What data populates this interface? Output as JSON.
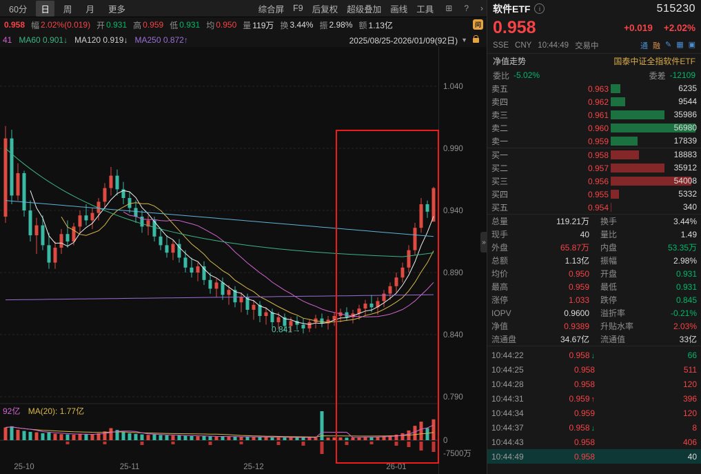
{
  "colors": {
    "up": "#dd4b42",
    "down": "#3ab9a5",
    "red_text": "#f54346",
    "green_text": "#00b86b",
    "accent_orange": "#e6a23c",
    "panel_bg": "#181818",
    "chart_bg": "#0f0f0f"
  },
  "toolbar": {
    "tabs": [
      {
        "label": "60分"
      },
      {
        "label": "日"
      },
      {
        "label": "周"
      },
      {
        "label": "月"
      },
      {
        "label": "更多"
      }
    ],
    "active_tab": "日",
    "menus": [
      "综合屏",
      "F9",
      "后复权",
      "超级叠加",
      "画线",
      "工具"
    ],
    "icons": [
      "grid-icon",
      "help-icon",
      "collapse-icon"
    ]
  },
  "quote_strip": {
    "items": [
      {
        "t": "0.958",
        "c": "first",
        "n": "last-price"
      },
      {
        "t": "幅",
        "c": "lbl",
        "n": "range-label"
      },
      {
        "t": "2.02%(0.019)",
        "c": "r",
        "n": "range-value"
      },
      {
        "t": "开",
        "c": "lbl",
        "n": "open-label"
      },
      {
        "t": "0.931",
        "c": "g",
        "n": "open-value"
      },
      {
        "t": "高",
        "c": "lbl",
        "n": "high-label"
      },
      {
        "t": "0.959",
        "c": "r",
        "n": "high-value"
      },
      {
        "t": "低",
        "c": "lbl",
        "n": "low-label"
      },
      {
        "t": "0.931",
        "c": "g",
        "n": "low-value"
      },
      {
        "t": "均",
        "c": "lbl",
        "n": "avg-label"
      },
      {
        "t": "0.950",
        "c": "r",
        "n": "avg-value"
      },
      {
        "t": "量",
        "c": "lbl",
        "n": "volume-label"
      },
      {
        "t": "119万",
        "c": "w",
        "n": "volume-value"
      },
      {
        "t": "换",
        "c": "lbl",
        "n": "turnover-label"
      },
      {
        "t": "3.44%",
        "c": "w",
        "n": "turnover-value"
      },
      {
        "t": "振",
        "c": "lbl",
        "n": "amplitude-label"
      },
      {
        "t": "2.98%",
        "c": "w",
        "n": "amplitude-value"
      },
      {
        "t": "额",
        "c": "lbl",
        "n": "amount-label"
      },
      {
        "t": "1.13亿",
        "c": "w",
        "n": "amount-value"
      }
    ]
  },
  "ma_strip": {
    "fragment": "41",
    "items": [
      {
        "label": "MA60",
        "value": "0.901",
        "dir": "↓",
        "color": "#3db485"
      },
      {
        "label": "MA120",
        "value": "0.919",
        "dir": "↓",
        "color": "#cfcfcf"
      },
      {
        "label": "MA250",
        "value": "0.872",
        "dir": "↑",
        "color": "#9b6fd6"
      }
    ],
    "date_range": "2025/08/25-2026/01/09(92日)"
  },
  "chart_data": {
    "type": "candlestick",
    "title": "软件ETF 515230 日K线",
    "visible_range": "2025/08/25-2026/01/09(92日)",
    "y_ticks": [
      1.04,
      0.99,
      0.94,
      0.89,
      0.84,
      0.79
    ],
    "x_labels": [
      {
        "label": "25-10",
        "i": 3
      },
      {
        "label": "25-11",
        "i": 20
      },
      {
        "label": "25-12",
        "i": 40
      },
      {
        "label": "26-01",
        "i": 63
      }
    ],
    "annotation": {
      "text": "0.841→",
      "price_y": 0.8435
    },
    "volume_legend_left": "92亿",
    "volume_legend_right": "MA(20): 1.77亿",
    "volume_axis_labels": [
      "0",
      "-7500万"
    ],
    "ma_lines": [
      {
        "name": "MA5",
        "color": "#f0f0f0",
        "window": 5
      },
      {
        "name": "MA10",
        "color": "#d8b84a",
        "window": 10
      },
      {
        "name": "MA20",
        "color": "#d065d0",
        "window": 20
      },
      {
        "name": "MA60",
        "color": "#3db485",
        "end_value": 0.901
      },
      {
        "name": "MA120",
        "color": "#5fb3d9",
        "end_value": 0.919
      },
      {
        "name": "MA250",
        "color": "#9b6fd6",
        "end_value": 0.872
      }
    ],
    "candles": {
      "open": [
        0.935,
        0.998,
        0.952,
        0.97,
        0.94,
        0.92,
        0.928,
        0.912,
        0.898,
        0.91,
        0.921,
        0.915,
        0.927,
        0.936,
        0.932,
        0.938,
        0.947,
        0.958,
        0.968,
        0.957,
        0.95,
        0.942,
        0.935,
        0.927,
        0.932,
        0.919,
        0.912,
        0.906,
        0.913,
        0.902,
        0.894,
        0.89,
        0.895,
        0.884,
        0.877,
        0.882,
        0.872,
        0.876,
        0.866,
        0.87,
        0.86,
        0.864,
        0.855,
        0.858,
        0.85,
        0.854,
        0.847,
        0.851,
        0.848,
        0.845,
        0.85,
        0.853,
        0.849,
        0.852,
        0.855,
        0.858,
        0.854,
        0.857,
        0.861,
        0.865,
        0.862,
        0.867,
        0.873,
        0.879,
        0.886,
        0.894,
        0.908,
        0.926,
        0.945,
        0.931
      ],
      "high": [
        1.008,
        1.005,
        0.978,
        0.972,
        0.948,
        0.934,
        0.936,
        0.922,
        0.915,
        0.925,
        0.932,
        0.93,
        0.94,
        0.945,
        0.942,
        0.95,
        0.962,
        0.975,
        0.973,
        0.963,
        0.955,
        0.948,
        0.94,
        0.936,
        0.935,
        0.926,
        0.92,
        0.916,
        0.917,
        0.908,
        0.902,
        0.898,
        0.899,
        0.89,
        0.885,
        0.886,
        0.88,
        0.879,
        0.874,
        0.873,
        0.868,
        0.867,
        0.862,
        0.861,
        0.858,
        0.857,
        0.854,
        0.855,
        0.853,
        0.852,
        0.856,
        0.857,
        0.855,
        0.858,
        0.861,
        0.862,
        0.86,
        0.864,
        0.868,
        0.872,
        0.87,
        0.876,
        0.882,
        0.89,
        0.898,
        0.912,
        0.93,
        0.95,
        0.948,
        0.959
      ],
      "low": [
        0.93,
        0.945,
        0.948,
        0.935,
        0.915,
        0.905,
        0.908,
        0.893,
        0.893,
        0.905,
        0.91,
        0.912,
        0.922,
        0.928,
        0.925,
        0.932,
        0.942,
        0.952,
        0.952,
        0.945,
        0.938,
        0.93,
        0.922,
        0.92,
        0.915,
        0.908,
        0.902,
        0.9,
        0.898,
        0.89,
        0.886,
        0.883,
        0.88,
        0.873,
        0.87,
        0.868,
        0.864,
        0.862,
        0.858,
        0.856,
        0.852,
        0.85,
        0.848,
        0.846,
        0.844,
        0.843,
        0.842,
        0.844,
        0.841,
        0.842,
        0.845,
        0.846,
        0.844,
        0.847,
        0.85,
        0.851,
        0.849,
        0.852,
        0.855,
        0.858,
        0.856,
        0.862,
        0.868,
        0.874,
        0.882,
        0.89,
        0.904,
        0.922,
        0.934,
        0.931
      ],
      "close": [
        0.998,
        0.952,
        0.97,
        0.94,
        0.92,
        0.928,
        0.912,
        0.898,
        0.91,
        0.921,
        0.915,
        0.927,
        0.936,
        0.932,
        0.938,
        0.947,
        0.958,
        0.968,
        0.957,
        0.95,
        0.942,
        0.935,
        0.927,
        0.932,
        0.919,
        0.912,
        0.906,
        0.913,
        0.902,
        0.894,
        0.89,
        0.895,
        0.884,
        0.877,
        0.882,
        0.872,
        0.876,
        0.866,
        0.87,
        0.86,
        0.864,
        0.855,
        0.858,
        0.85,
        0.854,
        0.847,
        0.851,
        0.848,
        0.845,
        0.85,
        0.853,
        0.849,
        0.852,
        0.855,
        0.858,
        0.854,
        0.857,
        0.861,
        0.865,
        0.862,
        0.867,
        0.873,
        0.879,
        0.886,
        0.894,
        0.908,
        0.926,
        0.945,
        0.939,
        0.958
      ],
      "volume": [
        55,
        60,
        45,
        40,
        36,
        34,
        30,
        33,
        28,
        26,
        25,
        24,
        28,
        26,
        24,
        30,
        38,
        52,
        44,
        34,
        30,
        27,
        25,
        23,
        25,
        22,
        21,
        20,
        21,
        19,
        18,
        17,
        18,
        16,
        15,
        16,
        15,
        15,
        14,
        14,
        13,
        14,
        12,
        13,
        12,
        12,
        11,
        12,
        13,
        11,
        12,
        125,
        11,
        12,
        12,
        11,
        12,
        13,
        14,
        14,
        15,
        17,
        20,
        24,
        30,
        42,
        62,
        80,
        52,
        90
      ]
    }
  },
  "right_panel": {
    "name": "软件ETF",
    "code": "515230",
    "price": "0.958",
    "change": "+0.019",
    "change_pct": "+2.02%",
    "exchange": "SSE",
    "currency": "CNY",
    "time": "10:44:49",
    "status": "交易中",
    "badges": [
      {
        "label": "通"
      },
      {
        "label": "融"
      }
    ],
    "tool_icons": [
      "✎",
      "▦",
      "▣"
    ],
    "nav_title": "净值走势",
    "fund_name": "国泰中证全指软件ETF",
    "weibi_label": "委比",
    "weibi": "-5.02%",
    "weicha_label": "委差",
    "weicha": "-12109",
    "max_book_vol": 56980,
    "asks": [
      {
        "label": "卖五",
        "price": "0.963",
        "vol": 6235
      },
      {
        "label": "卖四",
        "price": "0.962",
        "vol": 9544
      },
      {
        "label": "卖三",
        "price": "0.961",
        "vol": 35986
      },
      {
        "label": "卖二",
        "price": "0.960",
        "vol": 56980
      },
      {
        "label": "卖一",
        "price": "0.959",
        "vol": 17839
      }
    ],
    "bids": [
      {
        "label": "买一",
        "price": "0.958",
        "vol": 18883
      },
      {
        "label": "买二",
        "price": "0.957",
        "vol": 35912
      },
      {
        "label": "买三",
        "price": "0.956",
        "vol": 54008
      },
      {
        "label": "买四",
        "price": "0.955",
        "vol": 5332
      },
      {
        "label": "买五",
        "price": "0.954",
        "vol": 340
      }
    ],
    "stats": [
      {
        "l1": "总量",
        "v1": "119.21万",
        "c1": "w",
        "l2": "换手",
        "v2": "3.44%",
        "c2": "w"
      },
      {
        "l1": "现手",
        "v1": "40",
        "c1": "w",
        "l2": "量比",
        "v2": "1.49",
        "c2": "w"
      },
      {
        "l1": "外盘",
        "v1": "65.87万",
        "c1": "r",
        "l2": "内盘",
        "v2": "53.35万",
        "c2": "g"
      },
      {
        "l1": "总额",
        "v1": "1.13亿",
        "c1": "w",
        "l2": "振幅",
        "v2": "2.98%",
        "c2": "w"
      },
      {
        "l1": "均价",
        "v1": "0.950",
        "c1": "r",
        "l2": "开盘",
        "v2": "0.931",
        "c2": "g"
      },
      {
        "l1": "最高",
        "v1": "0.959",
        "c1": "r",
        "l2": "最低",
        "v2": "0.931",
        "c2": "g"
      },
      {
        "l1": "涨停",
        "v1": "1.033",
        "c1": "r",
        "l2": "跌停",
        "v2": "0.845",
        "c2": "g"
      },
      {
        "l1": "IOPV",
        "v1": "0.9600",
        "c1": "w",
        "l2": "溢折率",
        "v2": "-0.21%",
        "c2": "g"
      },
      {
        "l1": "净值",
        "v1": "0.9389",
        "c1": "r",
        "l2": "升贴水率",
        "v2": "2.03%",
        "c2": "r"
      },
      {
        "l1": "流通盘",
        "v1": "34.67亿",
        "c1": "w",
        "l2": "流通值",
        "v2": "33亿",
        "c2": "w"
      }
    ],
    "ticks": [
      {
        "time": "10:44:22",
        "price": "0.958",
        "arrow": "↓",
        "ac": "g",
        "vol": "66",
        "vc": "g",
        "highlight": false
      },
      {
        "time": "10:44:25",
        "price": "0.958",
        "arrow": "",
        "ac": "",
        "vol": "511",
        "vc": "r",
        "highlight": false
      },
      {
        "time": "10:44:28",
        "price": "0.958",
        "arrow": "",
        "ac": "",
        "vol": "120",
        "vc": "r",
        "highlight": false
      },
      {
        "time": "10:44:31",
        "price": "0.959",
        "arrow": "↑",
        "ac": "r",
        "vol": "396",
        "vc": "r",
        "highlight": false
      },
      {
        "time": "10:44:34",
        "price": "0.959",
        "arrow": "",
        "ac": "",
        "vol": "120",
        "vc": "r",
        "highlight": false
      },
      {
        "time": "10:44:37",
        "price": "0.958",
        "arrow": "↓",
        "ac": "g",
        "vol": "8",
        "vc": "r",
        "highlight": false
      },
      {
        "time": "10:44:43",
        "price": "0.958",
        "arrow": "",
        "ac": "",
        "vol": "406",
        "vc": "r",
        "highlight": false
      },
      {
        "time": "10:44:49",
        "price": "0.958",
        "arrow": "",
        "ac": "",
        "vol": "40",
        "vc": "w",
        "highlight": true
      }
    ]
  }
}
